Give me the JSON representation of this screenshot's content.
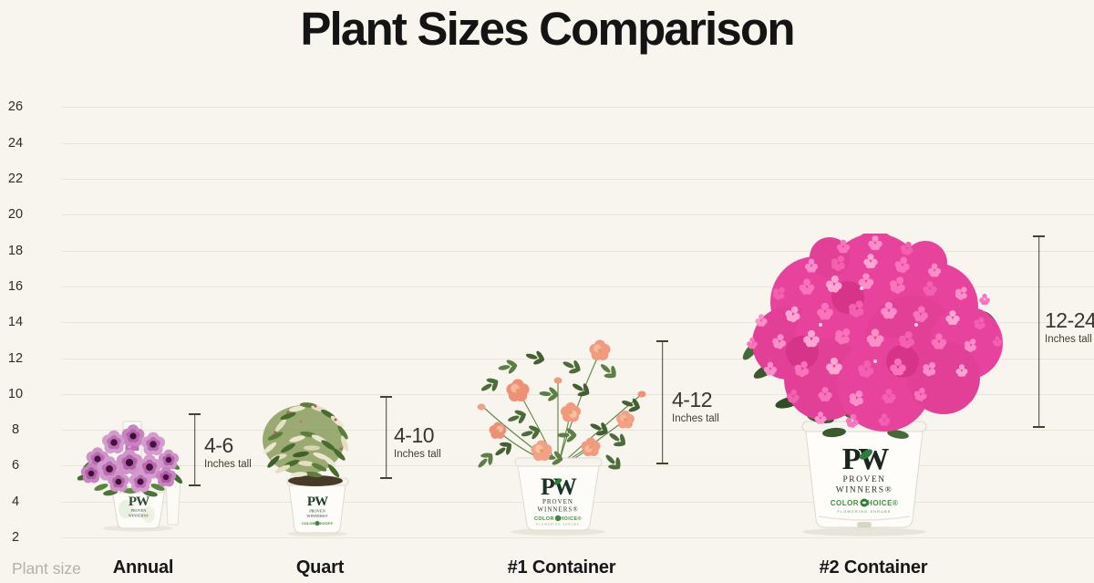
{
  "title": "Plant Sizes Comparison",
  "axis": {
    "label": "Plant size"
  },
  "brand": {
    "logo": "PW",
    "proven": "PROVEN",
    "winners": "WINNERS®",
    "color_choice": "COLOR CHOICE®",
    "flowering_shrubs": "FLOWERING SHRUBS"
  },
  "plants": [
    {
      "name": "Annual",
      "range": "4-6",
      "unit": "Inches tall",
      "min_inches": 4,
      "max_inches": 6
    },
    {
      "name": "Quart",
      "range": "4-10",
      "unit": "Inches tall",
      "min_inches": 4,
      "max_inches": 10
    },
    {
      "name": "#1 Container",
      "range": "4-12",
      "unit": "Inches tall",
      "min_inches": 4,
      "max_inches": 12
    },
    {
      "name": "#2 Container",
      "range": "12-24",
      "unit": "Inches tall",
      "min_inches": 12,
      "max_inches": 24
    }
  ],
  "chart_data": {
    "type": "bar",
    "title": "Plant Sizes Comparison",
    "xlabel": "Plant size",
    "ylabel": "",
    "categories": [
      "Annual",
      "Quart",
      "#1 Container",
      "#2 Container"
    ],
    "series": [
      {
        "name": "min height (inches)",
        "values": [
          4,
          4,
          4,
          12
        ]
      },
      {
        "name": "max height (inches)",
        "values": [
          6,
          10,
          12,
          24
        ]
      }
    ],
    "yticks": [
      26,
      24,
      22,
      20,
      18,
      16,
      14,
      12,
      10,
      8,
      6,
      4,
      2
    ],
    "ylim": [
      1,
      27
    ],
    "grid": true,
    "legend_position": "none",
    "annotations": [
      "4-6 Inches tall",
      "4-10 Inches tall",
      "4-12 Inches tall",
      "12-24 Inches tall"
    ],
    "colors": {
      "background": "#f7f5ee",
      "gridline": "#e8e5db",
      "text": "#141414",
      "measure": "#44422f",
      "petunia_pink": "#cf93c8",
      "rose_peach": "#f09a7f",
      "weigela_pink": "#ef4aa2",
      "pw_green": "#1d3b2a",
      "color_choice_green": "#3f8f3f"
    }
  }
}
